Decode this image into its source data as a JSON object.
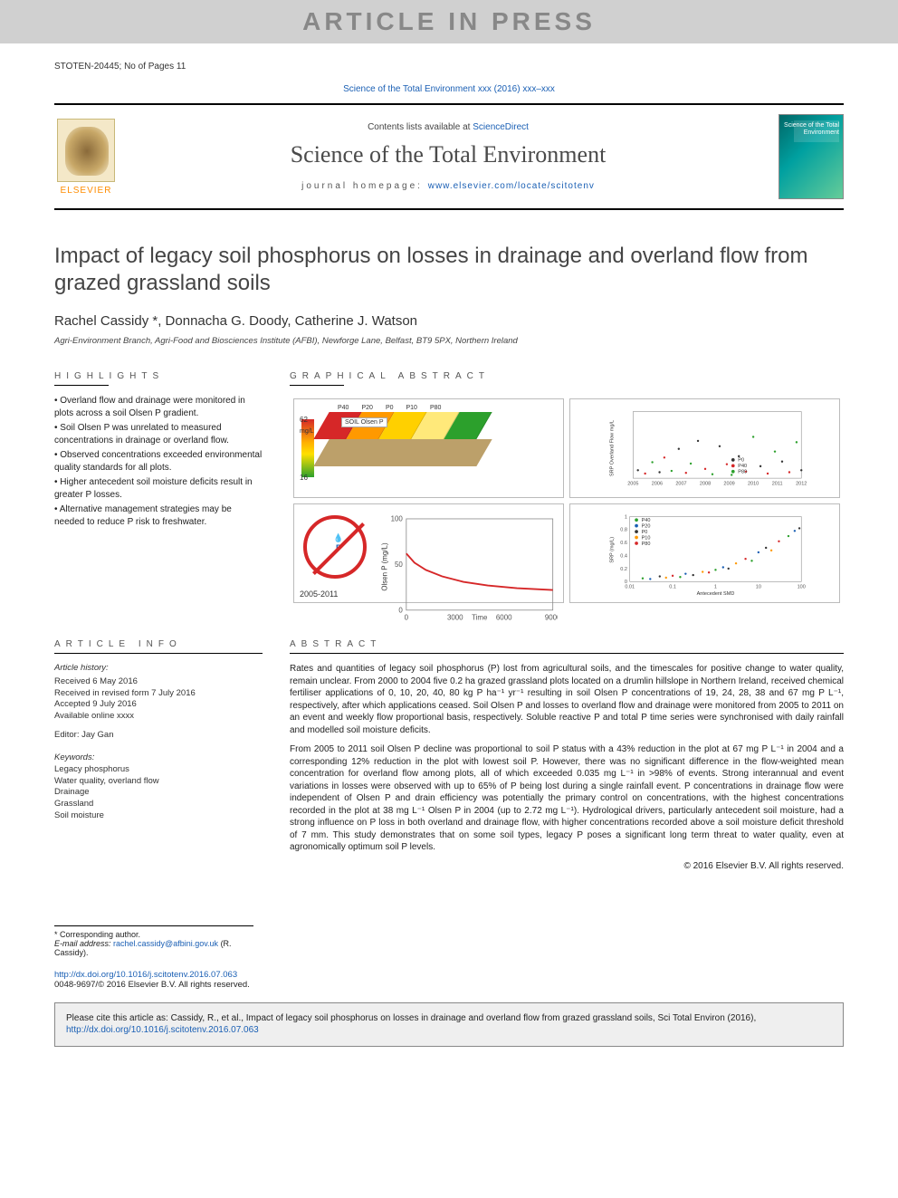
{
  "banner": "ARTICLE IN PRESS",
  "page_info": "STOTEN-20445; No of Pages 11",
  "top_link_prefix": "Science of the Total Environment xxx (2016) xxx–xxx",
  "masthead": {
    "publisher": "ELSEVIER",
    "contents_line_a": "Contents lists available at ",
    "contents_line_b": "ScienceDirect",
    "journal": "Science of the Total Environment",
    "homepage_label": "journal homepage: ",
    "homepage_url": "www.elsevier.com/locate/scitotenv",
    "cover_text": "Science of the Total Environment"
  },
  "title": "Impact of legacy soil phosphorus on losses in drainage and overland flow from grazed grassland soils",
  "authors": "Rachel Cassidy *, Donnacha G. Doody, Catherine J. Watson",
  "affiliation": "Agri-Environment Branch, Agri-Food and Biosciences Institute (AFBI), Newforge Lane, Belfast, BT9 5PX, Northern Ireland",
  "highlights_head": "HIGHLIGHTS",
  "highlights": [
    "Overland flow and drainage were monitored in plots across a soil Olsen P gradient.",
    "Soil Olsen P was unrelated to measured concentrations in drainage or overland flow.",
    "Observed concentrations exceeded environmental quality standards for all plots.",
    "Higher antecedent soil moisture deficits result in greater P losses.",
    "Alternative management strategies may be needed to reduce P risk to freshwater."
  ],
  "ga_head": "GRAPHICAL ABSTRACT",
  "ga": {
    "soil_panel": {
      "legend": "SOIL Olsen P",
      "scale_top": "62",
      "scale_bottom": "16",
      "scale_unit": "mg/L",
      "segments": [
        {
          "label": "P40",
          "color": "#d62728"
        },
        {
          "label": "P20",
          "color": "#ff9900"
        },
        {
          "label": "P0",
          "color": "#ffd000"
        },
        {
          "label": "P10",
          "color": "#ffe97a"
        },
        {
          "label": "P80",
          "color": "#2ca02c"
        }
      ]
    },
    "srp_overland": {
      "ylabel": "SRP Overland Flow mg/L",
      "xlim": [
        2005,
        2012
      ],
      "ylim": [
        0,
        10
      ],
      "xtick_step": 1,
      "series": [
        {
          "name": "P0",
          "color": "#333333"
        },
        {
          "name": "P40",
          "color": "#d62728"
        },
        {
          "name": "P80",
          "color": "#2ca02c"
        }
      ],
      "points": [
        [
          2005.2,
          1.2
        ],
        [
          2005.5,
          0.7
        ],
        [
          2005.8,
          2.4
        ],
        [
          2006.1,
          0.9
        ],
        [
          2006.3,
          3.1
        ],
        [
          2006.6,
          1.1
        ],
        [
          2006.9,
          4.4
        ],
        [
          2007.2,
          0.8
        ],
        [
          2007.4,
          2.2
        ],
        [
          2007.7,
          5.6
        ],
        [
          2008.0,
          1.4
        ],
        [
          2008.3,
          0.6
        ],
        [
          2008.6,
          4.8
        ],
        [
          2008.9,
          2.1
        ],
        [
          2009.1,
          0.5
        ],
        [
          2009.4,
          3.3
        ],
        [
          2009.7,
          1.0
        ],
        [
          2010.0,
          6.2
        ],
        [
          2010.3,
          1.8
        ],
        [
          2010.6,
          0.7
        ],
        [
          2010.9,
          4.0
        ],
        [
          2011.2,
          2.5
        ],
        [
          2011.5,
          0.9
        ],
        [
          2011.8,
          5.4
        ],
        [
          2012.0,
          1.2
        ]
      ]
    },
    "no_p": {
      "years": "2005-2011",
      "symbol": "P",
      "drops": "💧"
    },
    "decay_curve": {
      "ylabel": "Olsen P (mg/L)",
      "xlabel": "Time",
      "xlim": [
        0,
        9000
      ],
      "ylim": [
        0,
        100
      ],
      "xticks": [
        0,
        3000,
        6000,
        9000
      ],
      "yticks": [
        0,
        50,
        100
      ],
      "line_color": "#d62728",
      "points": [
        [
          0,
          62
        ],
        [
          500,
          52
        ],
        [
          1200,
          44
        ],
        [
          2200,
          37
        ],
        [
          3500,
          31
        ],
        [
          5000,
          27
        ],
        [
          6800,
          24
        ],
        [
          9000,
          22
        ]
      ]
    },
    "srp_smd": {
      "ylabel": "SRP (mg/L)",
      "xlabel": "Antecedent SMD",
      "xlim_log": [
        0.01,
        100
      ],
      "ylim": [
        0,
        1
      ],
      "xticks": [
        "0.01",
        "0.1",
        "1",
        "10",
        "100"
      ],
      "yticks": [
        0,
        0.2,
        0.4,
        0.6,
        0.8,
        1
      ],
      "series": [
        {
          "name": "P40",
          "color": "#2ca02c"
        },
        {
          "name": "P20",
          "color": "#1a5fb4"
        },
        {
          "name": "P0",
          "color": "#333333"
        },
        {
          "name": "P10",
          "color": "#ff9900"
        },
        {
          "name": "P80",
          "color": "#d62728"
        }
      ],
      "points": [
        [
          0.02,
          0.05
        ],
        [
          0.03,
          0.04
        ],
        [
          0.05,
          0.08
        ],
        [
          0.07,
          0.06
        ],
        [
          0.1,
          0.09
        ],
        [
          0.15,
          0.07
        ],
        [
          0.2,
          0.12
        ],
        [
          0.3,
          0.1
        ],
        [
          0.5,
          0.15
        ],
        [
          0.7,
          0.14
        ],
        [
          1,
          0.18
        ],
        [
          1.5,
          0.22
        ],
        [
          2,
          0.2
        ],
        [
          3,
          0.28
        ],
        [
          5,
          0.35
        ],
        [
          7,
          0.32
        ],
        [
          10,
          0.45
        ],
        [
          15,
          0.52
        ],
        [
          20,
          0.48
        ],
        [
          30,
          0.62
        ],
        [
          50,
          0.7
        ],
        [
          70,
          0.78
        ],
        [
          90,
          0.82
        ]
      ]
    }
  },
  "info_head": "ARTICLE INFO",
  "history_head": "Article history:",
  "history": [
    "Received 6 May 2016",
    "Received in revised form 7 July 2016",
    "Accepted 9 July 2016",
    "Available online xxxx"
  ],
  "editor_label": "Editor: ",
  "editor": "Jay Gan",
  "keywords_head": "Keywords:",
  "keywords": [
    "Legacy phosphorus",
    "Water quality, overland flow",
    "Drainage",
    "Grassland",
    "Soil moisture"
  ],
  "abstract_head": "ABSTRACT",
  "abstract": [
    "Rates and quantities of legacy soil phosphorus (P) lost from agricultural soils, and the timescales for positive change to water quality, remain unclear. From 2000 to 2004 five 0.2 ha grazed grassland plots located on a drumlin hillslope in Northern Ireland, received chemical fertiliser applications of 0, 10, 20, 40, 80 kg P ha⁻¹ yr⁻¹ resulting in soil Olsen P concentrations of 19, 24, 28, 38 and 67 mg P L⁻¹, respectively, after which applications ceased. Soil Olsen P and losses to overland flow and drainage were monitored from 2005 to 2011 on an event and weekly flow proportional basis, respectively. Soluble reactive P and total P time series were synchronised with daily rainfall and modelled soil moisture deficits.",
    "From 2005 to 2011 soil Olsen P decline was proportional to soil P status with a 43% reduction in the plot at 67 mg P L⁻¹ in 2004 and a corresponding 12% reduction in the plot with lowest soil P. However, there was no significant difference in the flow-weighted mean concentration for overland flow among plots, all of which exceeded 0.035 mg L⁻¹ in >98% of events. Strong interannual and event variations in losses were observed with up to 65% of P being lost during a single rainfall event. P concentrations in drainage flow were independent of Olsen P and drain efficiency was potentially the primary control on concentrations, with the highest concentrations recorded in the plot at 38 mg L⁻¹ Olsen P in 2004 (up to 2.72 mg L⁻¹). Hydrological drivers, particularly antecedent soil moisture, had a strong influence on P loss in both overland and drainage flow, with higher concentrations recorded above a soil moisture deficit threshold of 7 mm. This study demonstrates that on some soil types, legacy P poses a significant long term threat to water quality, even at agronomically optimum soil P levels."
  ],
  "copyright": "© 2016 Elsevier B.V. All rights reserved.",
  "corr_label": "* Corresponding author.",
  "email_label": "E-mail address: ",
  "email": "rachel.cassidy@afbini.gov.uk",
  "email_suffix": " (R. Cassidy).",
  "doi_url": "http://dx.doi.org/10.1016/j.scitotenv.2016.07.063",
  "issn_line": "0048-9697/© 2016 Elsevier B.V. All rights reserved.",
  "cite_prefix": "Please cite this article as: Cassidy, R., et al., Impact of legacy soil phosphorus on losses in drainage and overland flow from grazed grassland soils, Sci Total Environ (2016), ",
  "cite_url": "http://dx.doi.org/10.1016/j.scitotenv.2016.07.063"
}
